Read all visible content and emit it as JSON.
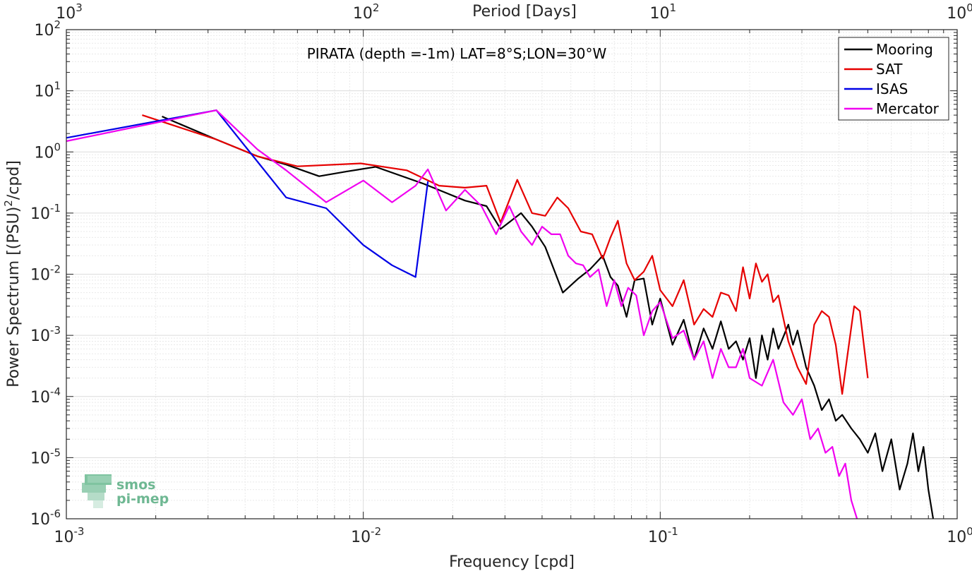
{
  "chart_data": {
    "type": "line",
    "xscale": "log",
    "yscale": "log",
    "xlabel": "Frequency [cpd]",
    "ylabel": "Power Spectrum [(PSU)",
    "ylabel_sup": "2",
    "ylabel_tail": "/cpd]",
    "top_xlabel": "Period [Days]",
    "annotation": "PIRATA (depth =-1m) LAT=8°S;LON=30°W",
    "xlim": [
      0.001,
      1
    ],
    "ylim": [
      1e-06,
      100
    ],
    "grid": true,
    "minor_grid": true,
    "legend_position": "top-right",
    "x_ticks": [
      0.001,
      0.01,
      0.1,
      1
    ],
    "x_tick_labels": [
      {
        "base": "10",
        "exp": "-3"
      },
      {
        "base": "10",
        "exp": "-2"
      },
      {
        "base": "10",
        "exp": "-1"
      },
      {
        "base": "10",
        "exp": "0"
      }
    ],
    "top_tick_labels": [
      {
        "base": "10",
        "exp": "3"
      },
      {
        "base": "10",
        "exp": "2"
      },
      {
        "base": "10",
        "exp": "1"
      },
      {
        "base": "10",
        "exp": "0"
      }
    ],
    "y_ticks": [
      1e-06,
      1e-05,
      0.0001,
      0.001,
      0.01,
      0.1,
      1,
      10,
      100
    ],
    "y_tick_labels": [
      {
        "base": "10",
        "exp": "-6"
      },
      {
        "base": "10",
        "exp": "-5"
      },
      {
        "base": "10",
        "exp": "-4"
      },
      {
        "base": "10",
        "exp": "-3"
      },
      {
        "base": "10",
        "exp": "-2"
      },
      {
        "base": "10",
        "exp": "-1"
      },
      {
        "base": "10",
        "exp": "0"
      },
      {
        "base": "10",
        "exp": "1"
      },
      {
        "base": "10",
        "exp": "2"
      }
    ],
    "series": [
      {
        "name": "Mooring",
        "color": "#000000",
        "x": [
          0.0021,
          0.0032,
          0.0044,
          0.0055,
          0.0071,
          0.0088,
          0.011,
          0.016,
          0.022,
          0.026,
          0.029,
          0.034,
          0.037,
          0.041,
          0.047,
          0.053,
          0.058,
          0.064,
          0.068,
          0.072,
          0.077,
          0.082,
          0.088,
          0.094,
          0.1,
          0.11,
          0.12,
          0.13,
          0.14,
          0.15,
          0.16,
          0.17,
          0.18,
          0.19,
          0.2,
          0.21,
          0.22,
          0.23,
          0.24,
          0.25,
          0.27,
          0.28,
          0.29,
          0.31,
          0.33,
          0.35,
          0.37,
          0.39,
          0.41,
          0.44,
          0.47,
          0.5,
          0.53,
          0.56,
          0.6,
          0.64,
          0.68,
          0.71,
          0.74,
          0.77,
          0.8,
          0.83
        ],
        "values": [
          3.8,
          1.6,
          0.85,
          0.62,
          0.4,
          0.48,
          0.57,
          0.3,
          0.16,
          0.13,
          0.055,
          0.1,
          0.06,
          0.028,
          0.005,
          0.0085,
          0.012,
          0.02,
          0.009,
          0.0065,
          0.002,
          0.008,
          0.0085,
          0.0015,
          0.004,
          0.0007,
          0.0018,
          0.0004,
          0.0013,
          0.0006,
          0.0017,
          0.0006,
          0.0008,
          0.0004,
          0.0009,
          0.0002,
          0.001,
          0.0004,
          0.0013,
          0.0006,
          0.0015,
          0.0007,
          0.0012,
          0.0003,
          0.00015,
          6e-05,
          9e-05,
          4e-05,
          5e-05,
          3e-05,
          2e-05,
          1.2e-05,
          2.5e-05,
          6e-06,
          2e-05,
          3e-06,
          8e-06,
          2.5e-05,
          6e-06,
          1.5e-05,
          3e-06,
          1e-06
        ]
      },
      {
        "name": "SAT",
        "color": "#e60000",
        "x": [
          0.0018,
          0.0032,
          0.0044,
          0.006,
          0.0098,
          0.014,
          0.018,
          0.022,
          0.026,
          0.029,
          0.033,
          0.037,
          0.041,
          0.045,
          0.049,
          0.054,
          0.059,
          0.064,
          0.068,
          0.072,
          0.077,
          0.082,
          0.088,
          0.094,
          0.1,
          0.11,
          0.12,
          0.13,
          0.14,
          0.15,
          0.16,
          0.17,
          0.18,
          0.19,
          0.2,
          0.21,
          0.22,
          0.23,
          0.24,
          0.25,
          0.27,
          0.29,
          0.31,
          0.33,
          0.35,
          0.37,
          0.39,
          0.41,
          0.43,
          0.45,
          0.47,
          0.5
        ],
        "values": [
          4.0,
          1.6,
          0.85,
          0.58,
          0.65,
          0.5,
          0.28,
          0.26,
          0.28,
          0.07,
          0.35,
          0.1,
          0.09,
          0.18,
          0.12,
          0.05,
          0.045,
          0.018,
          0.04,
          0.075,
          0.015,
          0.008,
          0.011,
          0.02,
          0.0055,
          0.003,
          0.008,
          0.0015,
          0.0027,
          0.002,
          0.005,
          0.0045,
          0.0025,
          0.013,
          0.004,
          0.015,
          0.0075,
          0.01,
          0.0035,
          0.0045,
          0.0008,
          0.0003,
          0.00016,
          0.0015,
          0.0025,
          0.002,
          0.0007,
          0.00011,
          0.0006,
          0.003,
          0.0025,
          0.0002
        ]
      },
      {
        "name": "ISAS",
        "color": "#0000e6",
        "x": [
          0.001,
          0.0032,
          0.0055,
          0.0075,
          0.01,
          0.0125,
          0.015,
          0.0165
        ],
        "values": [
          1.7,
          4.8,
          0.18,
          0.12,
          0.03,
          0.014,
          0.009,
          0.33
        ]
      },
      {
        "name": "Mercator",
        "color": "#f000f0",
        "x": [
          0.001,
          0.0032,
          0.0044,
          0.0055,
          0.0075,
          0.01,
          0.0125,
          0.015,
          0.0165,
          0.019,
          0.022,
          0.025,
          0.028,
          0.031,
          0.034,
          0.037,
          0.04,
          0.043,
          0.046,
          0.049,
          0.052,
          0.055,
          0.058,
          0.062,
          0.066,
          0.07,
          0.074,
          0.078,
          0.083,
          0.088,
          0.094,
          0.1,
          0.11,
          0.12,
          0.13,
          0.14,
          0.15,
          0.16,
          0.17,
          0.18,
          0.19,
          0.2,
          0.22,
          0.24,
          0.26,
          0.28,
          0.3,
          0.32,
          0.34,
          0.36,
          0.38,
          0.4,
          0.42,
          0.44,
          0.46
        ],
        "values": [
          1.5,
          4.8,
          1.1,
          0.5,
          0.15,
          0.34,
          0.15,
          0.28,
          0.52,
          0.11,
          0.24,
          0.13,
          0.045,
          0.13,
          0.05,
          0.03,
          0.06,
          0.045,
          0.045,
          0.02,
          0.015,
          0.014,
          0.009,
          0.012,
          0.003,
          0.008,
          0.003,
          0.006,
          0.0045,
          0.001,
          0.0025,
          0.0035,
          0.0009,
          0.0012,
          0.0004,
          0.0008,
          0.0002,
          0.0006,
          0.0003,
          0.0003,
          0.0006,
          0.0002,
          0.00015,
          0.0004,
          8e-05,
          5e-05,
          9e-05,
          2e-05,
          3e-05,
          1.2e-05,
          1.5e-05,
          5e-06,
          8e-06,
          2e-06,
          1e-06
        ]
      }
    ]
  },
  "logo": {
    "line1": "smos",
    "line2": "pi-mep"
  }
}
